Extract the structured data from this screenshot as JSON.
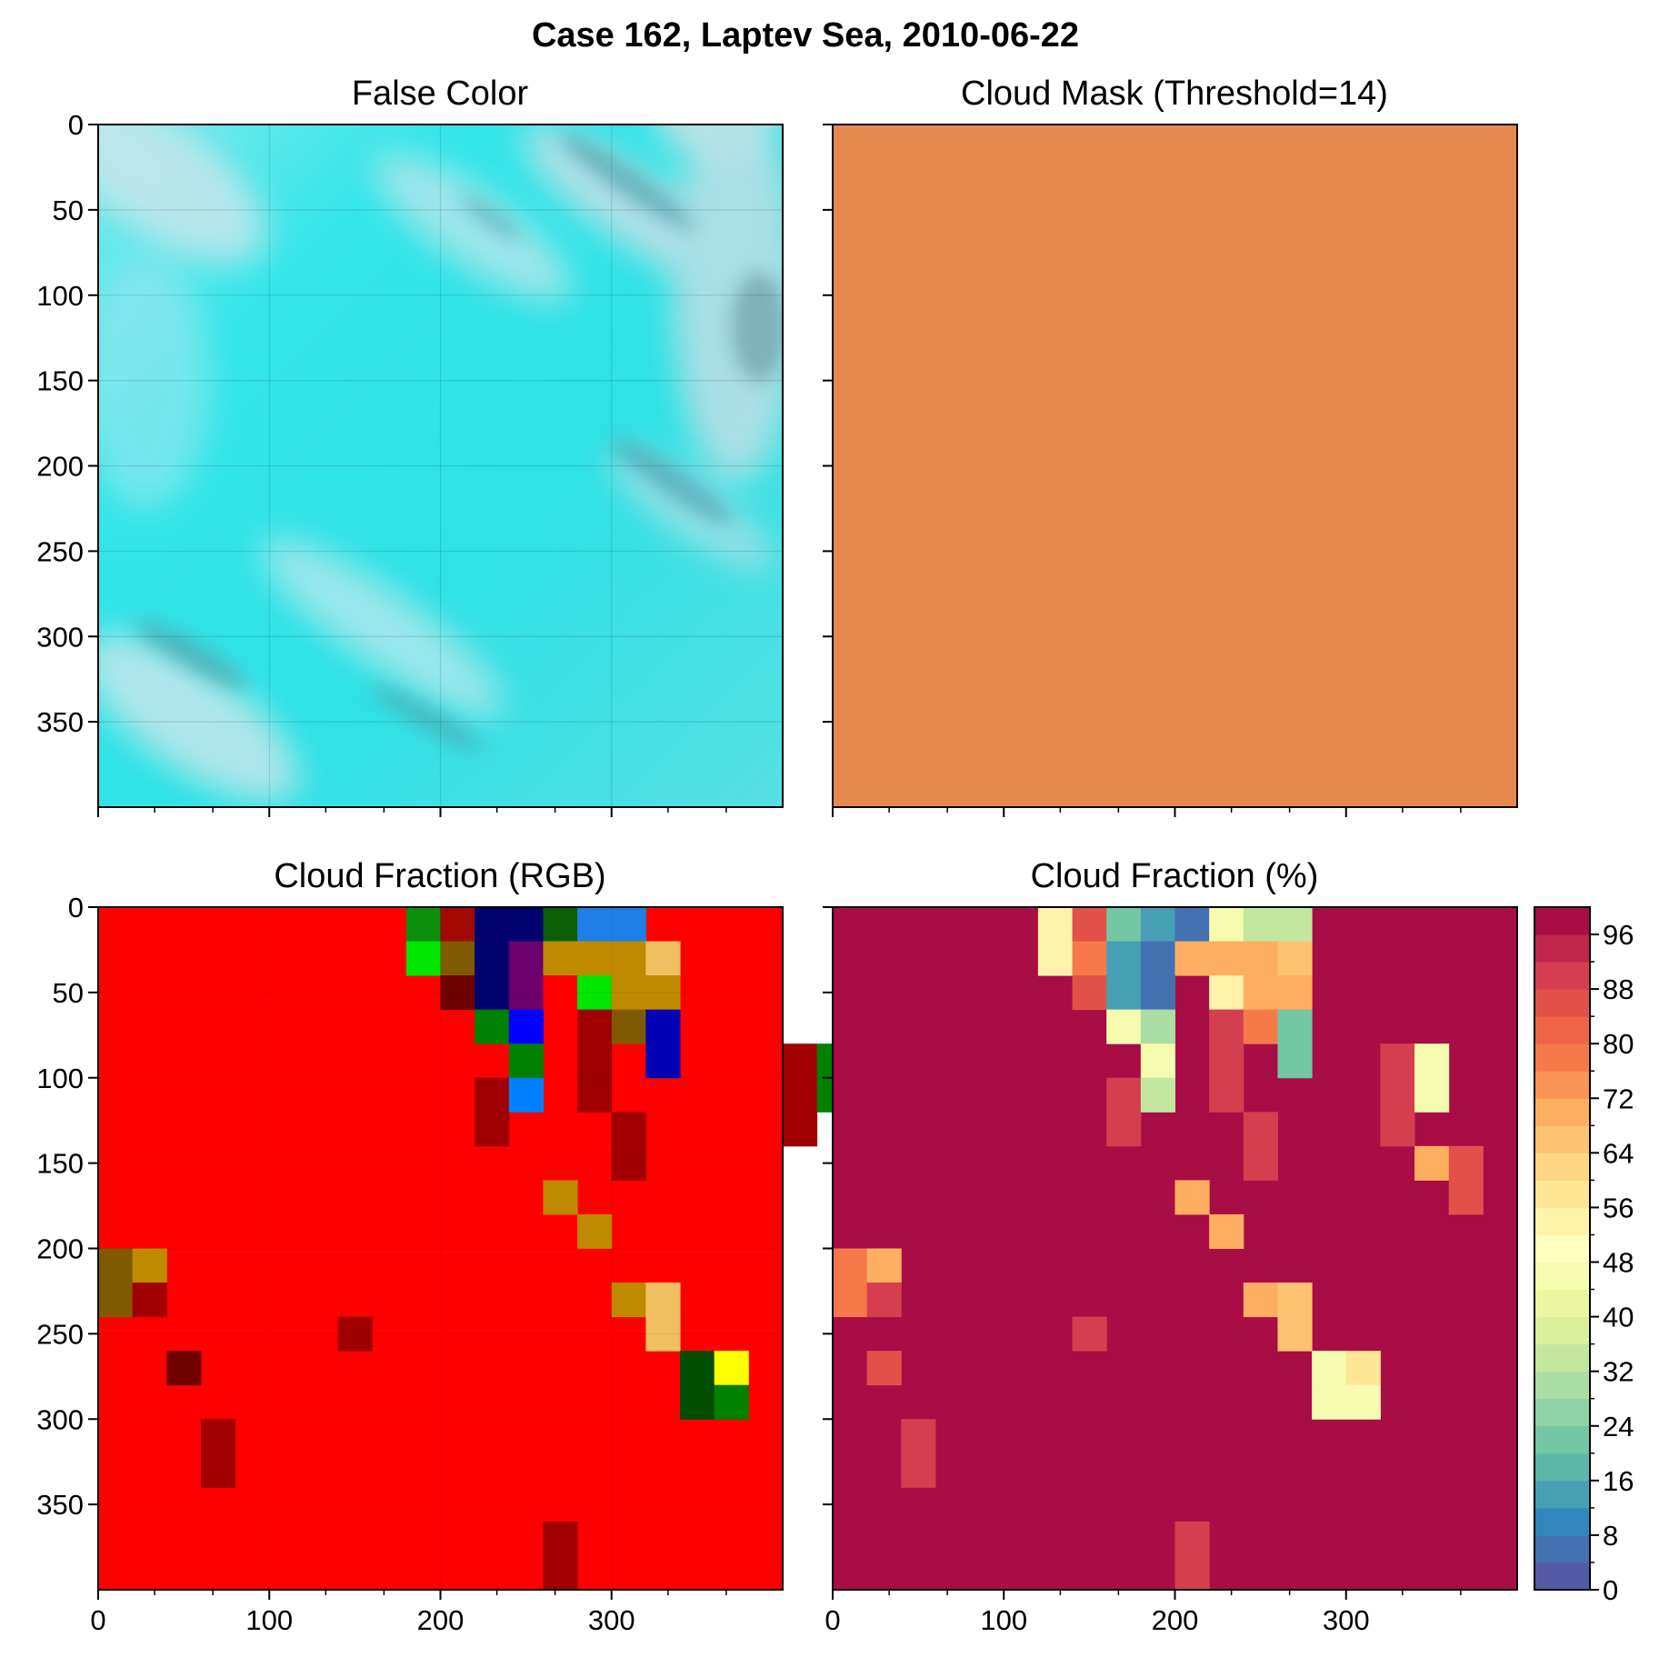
{
  "figure": {
    "title": "Case 162, Laptev Sea, 2010-06-22"
  },
  "chart_data": [
    {
      "type": "heatmap",
      "name": "false-color",
      "title": "False Color",
      "xlim": [
        0,
        400
      ],
      "ylim": [
        400,
        0
      ],
      "xticks": [
        "0",
        "100",
        "200",
        "300"
      ],
      "yticks": [
        "0",
        "50",
        "100",
        "150",
        "200",
        "250",
        "300",
        "350"
      ],
      "x_tick_labels_shown": false,
      "grid": true,
      "base_color": "#2ee6e6",
      "haze_color": "#cfe6ea",
      "shadow_color": "#3d8f9a"
    },
    {
      "type": "heatmap",
      "name": "cloud-mask",
      "title": "Cloud Mask (Threshold=14)",
      "xlim": [
        0,
        400
      ],
      "ylim": [
        400,
        0
      ],
      "fill_color": "#e6894f",
      "x_tick_labels_shown": false,
      "y_tick_labels_shown": false
    },
    {
      "type": "heatmap",
      "name": "cloud-fraction-rgb",
      "title": "Cloud Fraction (RGB)",
      "xlim": [
        0,
        400
      ],
      "ylim": [
        400,
        0
      ],
      "xticks": [
        "0",
        "100",
        "200",
        "300"
      ],
      "yticks": [
        "0",
        "50",
        "100",
        "150",
        "200",
        "250",
        "300",
        "350"
      ],
      "cell_size": 20,
      "background": "#ff0000",
      "cells": [
        {
          "col": 9,
          "row": 0,
          "color": "#0b8f0b"
        },
        {
          "col": 10,
          "row": 0,
          "color": "#a00a00"
        },
        {
          "col": 11,
          "row": 0,
          "color": "#00006e"
        },
        {
          "col": 12,
          "row": 0,
          "color": "#00006e"
        },
        {
          "col": 13,
          "row": 0,
          "color": "#0b5e05"
        },
        {
          "col": 14,
          "row": 0,
          "color": "#1e7fe6"
        },
        {
          "col": 15,
          "row": 0,
          "color": "#1e7fe6"
        },
        {
          "col": 9,
          "row": 1,
          "color": "#00e600"
        },
        {
          "col": 10,
          "row": 1,
          "color": "#7f5a00"
        },
        {
          "col": 11,
          "row": 1,
          "color": "#00006e"
        },
        {
          "col": 12,
          "row": 1,
          "color": "#6e006e"
        },
        {
          "col": 13,
          "row": 1,
          "color": "#c08a00"
        },
        {
          "col": 14,
          "row": 1,
          "color": "#c08a00"
        },
        {
          "col": 15,
          "row": 1,
          "color": "#c08a00"
        },
        {
          "col": 16,
          "row": 1,
          "color": "#f0c060"
        },
        {
          "col": 10,
          "row": 2,
          "color": "#6e0000"
        },
        {
          "col": 11,
          "row": 2,
          "color": "#00006e"
        },
        {
          "col": 12,
          "row": 2,
          "color": "#6e006e"
        },
        {
          "col": 13,
          "row": 2,
          "color": "#ff0000"
        },
        {
          "col": 14,
          "row": 2,
          "color": "#00e600"
        },
        {
          "col": 15,
          "row": 2,
          "color": "#c08a00"
        },
        {
          "col": 16,
          "row": 2,
          "color": "#c08a00"
        },
        {
          "col": 11,
          "row": 3,
          "color": "#008000"
        },
        {
          "col": 12,
          "row": 3,
          "color": "#0000ff"
        },
        {
          "col": 14,
          "row": 3,
          "color": "#a00000"
        },
        {
          "col": 15,
          "row": 3,
          "color": "#7f5a00"
        },
        {
          "col": 16,
          "row": 3,
          "color": "#0000b4"
        },
        {
          "col": 12,
          "row": 4,
          "color": "#008000"
        },
        {
          "col": 14,
          "row": 4,
          "color": "#a00000"
        },
        {
          "col": 16,
          "row": 4,
          "color": "#0000b4"
        },
        {
          "col": 20,
          "row": 4,
          "color": "#a00000"
        },
        {
          "col": 21,
          "row": 4,
          "color": "#008000"
        },
        {
          "col": 11,
          "row": 5,
          "color": "#a00000"
        },
        {
          "col": 12,
          "row": 5,
          "color": "#0080ff"
        },
        {
          "col": 14,
          "row": 5,
          "color": "#a00000"
        },
        {
          "col": 20,
          "row": 5,
          "color": "#a00000"
        },
        {
          "col": 21,
          "row": 5,
          "color": "#008000"
        },
        {
          "col": 11,
          "row": 6,
          "color": "#a00000"
        },
        {
          "col": 15,
          "row": 6,
          "color": "#a00000"
        },
        {
          "col": 20,
          "row": 6,
          "color": "#a00000"
        },
        {
          "col": 15,
          "row": 7,
          "color": "#a00000"
        },
        {
          "col": 22,
          "row": 7,
          "color": "#f0c060"
        },
        {
          "col": 23,
          "row": 7,
          "color": "#6e0000"
        },
        {
          "col": 13,
          "row": 8,
          "color": "#c08a00"
        },
        {
          "col": 23,
          "row": 8,
          "color": "#6e0000"
        },
        {
          "col": 14,
          "row": 9,
          "color": "#c08a00"
        },
        {
          "col": 0,
          "row": 10,
          "color": "#7f5a00"
        },
        {
          "col": 1,
          "row": 10,
          "color": "#c08a00"
        },
        {
          "col": 0,
          "row": 11,
          "color": "#7f5a00"
        },
        {
          "col": 1,
          "row": 11,
          "color": "#a00000"
        },
        {
          "col": 15,
          "row": 11,
          "color": "#c08a00"
        },
        {
          "col": 16,
          "row": 11,
          "color": "#f0c060"
        },
        {
          "col": 7,
          "row": 12,
          "color": "#a00000"
        },
        {
          "col": 16,
          "row": 12,
          "color": "#f0c060"
        },
        {
          "col": 2,
          "row": 13,
          "color": "#6e0000"
        },
        {
          "col": 17,
          "row": 13,
          "color": "#004d00"
        },
        {
          "col": 18,
          "row": 13,
          "color": "#ffff00"
        },
        {
          "col": 17,
          "row": 14,
          "color": "#004d00"
        },
        {
          "col": 18,
          "row": 14,
          "color": "#008000"
        },
        {
          "col": 3,
          "row": 15,
          "color": "#a00000"
        },
        {
          "col": 3,
          "row": 16,
          "color": "#a00000"
        },
        {
          "col": 13,
          "row": 18,
          "color": "#a00000"
        },
        {
          "col": 13,
          "row": 19,
          "color": "#a00000"
        }
      ]
    },
    {
      "type": "heatmap",
      "name": "cloud-fraction-pct",
      "title": "Cloud Fraction (%)",
      "xlim": [
        0,
        400
      ],
      "ylim": [
        400,
        0
      ],
      "xticks": [
        "0",
        "100",
        "200",
        "300"
      ],
      "y_tick_labels_shown": false,
      "cell_size": 20,
      "default_value": 100,
      "cells": [
        {
          "col": 6,
          "row": 0,
          "value": 54
        },
        {
          "col": 7,
          "row": 0,
          "value": 86
        },
        {
          "col": 8,
          "row": 0,
          "value": 22
        },
        {
          "col": 9,
          "row": 0,
          "value": 14
        },
        {
          "col": 10,
          "row": 0,
          "value": 6
        },
        {
          "col": 11,
          "row": 0,
          "value": 46
        },
        {
          "col": 12,
          "row": 0,
          "value": 34
        },
        {
          "col": 13,
          "row": 0,
          "value": 34
        },
        {
          "col": 6,
          "row": 1,
          "value": 54
        },
        {
          "col": 7,
          "row": 1,
          "value": 78
        },
        {
          "col": 8,
          "row": 1,
          "value": 14
        },
        {
          "col": 9,
          "row": 1,
          "value": 6
        },
        {
          "col": 10,
          "row": 1,
          "value": 70
        },
        {
          "col": 11,
          "row": 1,
          "value": 70
        },
        {
          "col": 12,
          "row": 1,
          "value": 70
        },
        {
          "col": 13,
          "row": 1,
          "value": 66
        },
        {
          "col": 7,
          "row": 2,
          "value": 86
        },
        {
          "col": 8,
          "row": 2,
          "value": 14
        },
        {
          "col": 9,
          "row": 2,
          "value": 6
        },
        {
          "col": 11,
          "row": 2,
          "value": 54
        },
        {
          "col": 12,
          "row": 2,
          "value": 70
        },
        {
          "col": 13,
          "row": 2,
          "value": 70
        },
        {
          "col": 8,
          "row": 3,
          "value": 46
        },
        {
          "col": 9,
          "row": 3,
          "value": 30
        },
        {
          "col": 11,
          "row": 3,
          "value": 90
        },
        {
          "col": 12,
          "row": 3,
          "value": 78
        },
        {
          "col": 13,
          "row": 3,
          "value": 22
        },
        {
          "col": 9,
          "row": 4,
          "value": 46
        },
        {
          "col": 11,
          "row": 4,
          "value": 90
        },
        {
          "col": 13,
          "row": 4,
          "value": 22
        },
        {
          "col": 16,
          "row": 4,
          "value": 90
        },
        {
          "col": 17,
          "row": 4,
          "value": 46
        },
        {
          "col": 8,
          "row": 5,
          "value": 90
        },
        {
          "col": 9,
          "row": 5,
          "value": 34
        },
        {
          "col": 11,
          "row": 5,
          "value": 90
        },
        {
          "col": 16,
          "row": 5,
          "value": 90
        },
        {
          "col": 17,
          "row": 5,
          "value": 46
        },
        {
          "col": 8,
          "row": 6,
          "value": 90
        },
        {
          "col": 12,
          "row": 6,
          "value": 90
        },
        {
          "col": 16,
          "row": 6,
          "value": 90
        },
        {
          "col": 12,
          "row": 7,
          "value": 90
        },
        {
          "col": 17,
          "row": 7,
          "value": 70
        },
        {
          "col": 18,
          "row": 7,
          "value": 86
        },
        {
          "col": 10,
          "row": 8,
          "value": 70
        },
        {
          "col": 18,
          "row": 8,
          "value": 86
        },
        {
          "col": 11,
          "row": 9,
          "value": 70
        },
        {
          "col": 0,
          "row": 10,
          "value": 78
        },
        {
          "col": 1,
          "row": 10,
          "value": 70
        },
        {
          "col": 0,
          "row": 11,
          "value": 78
        },
        {
          "col": 1,
          "row": 11,
          "value": 90
        },
        {
          "col": 12,
          "row": 11,
          "value": 70
        },
        {
          "col": 13,
          "row": 11,
          "value": 66
        },
        {
          "col": 7,
          "row": 12,
          "value": 90
        },
        {
          "col": 13,
          "row": 12,
          "value": 66
        },
        {
          "col": 1,
          "row": 13,
          "value": 86
        },
        {
          "col": 14,
          "row": 13,
          "value": 46
        },
        {
          "col": 15,
          "row": 13,
          "value": 58
        },
        {
          "col": 14,
          "row": 14,
          "value": 46
        },
        {
          "col": 15,
          "row": 14,
          "value": 46
        },
        {
          "col": 2,
          "row": 15,
          "value": 90
        },
        {
          "col": 2,
          "row": 16,
          "value": 90
        },
        {
          "col": 10,
          "row": 18,
          "value": 90
        },
        {
          "col": 10,
          "row": 19,
          "value": 90
        }
      ],
      "colorbar": {
        "min": 0,
        "max": 100,
        "step": 4,
        "ticks": [
          "0",
          "8",
          "16",
          "24",
          "32",
          "40",
          "48",
          "56",
          "64",
          "72",
          "80",
          "88",
          "96"
        ],
        "colormap": "Spectral"
      }
    }
  ]
}
